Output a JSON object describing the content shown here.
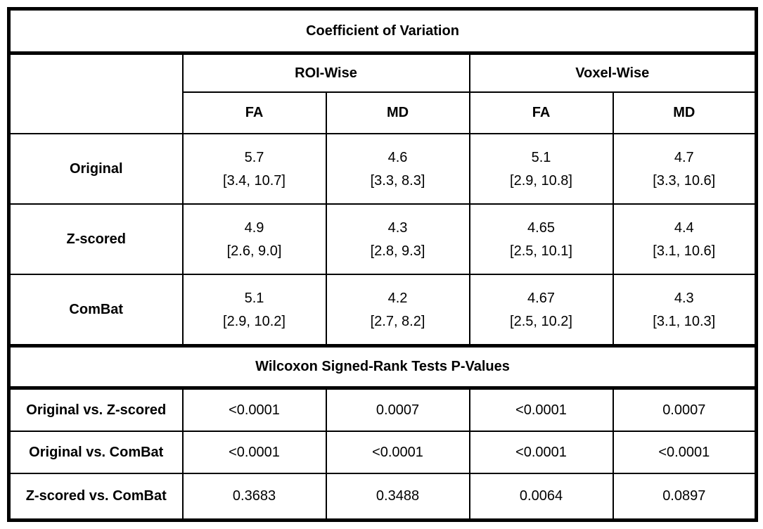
{
  "table": {
    "title": "Coefficient of Variation",
    "group_headers": [
      "ROI-Wise",
      "Voxel-Wise"
    ],
    "col_headers": [
      "FA",
      "MD",
      "FA",
      "MD"
    ],
    "cv_rows": [
      {
        "label": "Original",
        "cells": [
          {
            "value": "5.7",
            "range": "[3.4, 10.7]"
          },
          {
            "value": "4.6",
            "range": "[3.3, 8.3]"
          },
          {
            "value": "5.1",
            "range": "[2.9, 10.8]"
          },
          {
            "value": "4.7",
            "range": "[3.3, 10.6]"
          }
        ]
      },
      {
        "label": "Z-scored",
        "cells": [
          {
            "value": "4.9",
            "range": "[2.6, 9.0]"
          },
          {
            "value": "4.3",
            "range": "[2.8, 9.3]"
          },
          {
            "value": "4.65",
            "range": "[2.5, 10.1]"
          },
          {
            "value": "4.4",
            "range": "[3.1, 10.6]"
          }
        ]
      },
      {
        "label": "ComBat",
        "cells": [
          {
            "value": "5.1",
            "range": "[2.9, 10.2]"
          },
          {
            "value": "4.2",
            "range": "[2.7, 8.2]"
          },
          {
            "value": "4.67",
            "range": "[2.5, 10.2]"
          },
          {
            "value": "4.3",
            "range": "[3.1, 10.3]"
          }
        ]
      }
    ],
    "wilcoxon_title": "Wilcoxon Signed-Rank Tests P-Values",
    "wilcoxon_rows": [
      {
        "label": "Original vs. Z-scored",
        "values": [
          "<0.0001",
          "0.0007",
          "<0.0001",
          "0.0007"
        ]
      },
      {
        "label": "Original vs. ComBat",
        "values": [
          "<0.0001",
          "<0.0001",
          "<0.0001",
          "<0.0001"
        ]
      },
      {
        "label": "Z-scored vs. ComBat",
        "values": [
          "0.3683",
          "0.3488",
          "0.0064",
          "0.0897"
        ]
      }
    ]
  }
}
